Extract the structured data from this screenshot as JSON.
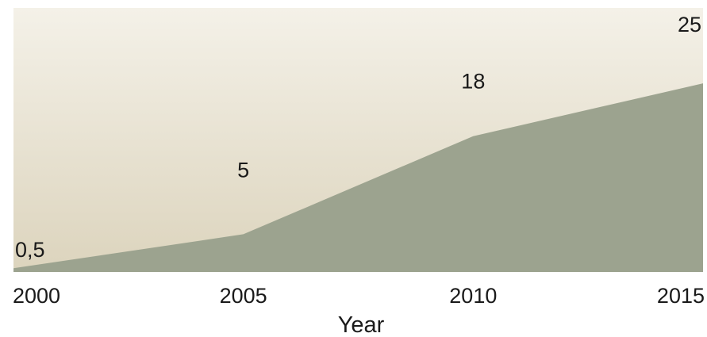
{
  "chart_data": {
    "type": "area",
    "x": [
      2000,
      2005,
      2010,
      2015
    ],
    "values": [
      0.5,
      5,
      18,
      25
    ],
    "data_labels": [
      "0,5",
      "5",
      "18",
      "25"
    ],
    "tick_labels": [
      "2000",
      "2005",
      "2010",
      "2015"
    ],
    "title": "",
    "xlabel": "Year",
    "ylabel": "",
    "ylim": [
      0,
      35
    ],
    "grid": false,
    "legend": "none",
    "colors": {
      "area_fill": "#9ca38f",
      "background_top": "#f4f1e8",
      "background_bottom": "#dcd4bd",
      "text": "#1a1a1a"
    }
  }
}
